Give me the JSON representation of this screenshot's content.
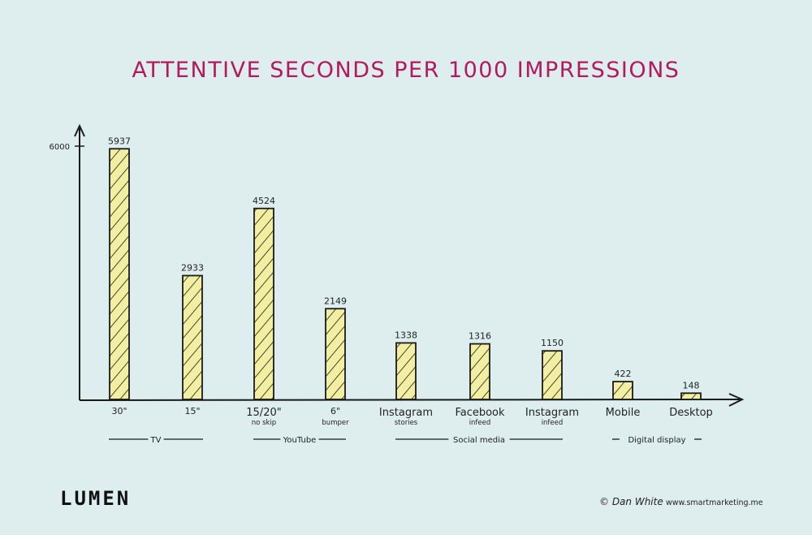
{
  "chart_data": {
    "type": "bar",
    "title": "ATTENTIVE SECONDS PER 1000 IMPRESSIONS",
    "ylim": [
      0,
      6000
    ],
    "yticks": [
      "6000"
    ],
    "grid": false,
    "categories": [
      {
        "label": "30\"",
        "sub": ""
      },
      {
        "label": "15\"",
        "sub": ""
      },
      {
        "label": "15/20\"",
        "sub": "no skip"
      },
      {
        "label": "6\"",
        "sub": "bumper"
      },
      {
        "label": "Instagram",
        "sub": "stories"
      },
      {
        "label": "Facebook",
        "sub": "infeed"
      },
      {
        "label": "Instagram",
        "sub": "infeed"
      },
      {
        "label": "Mobile",
        "sub": ""
      },
      {
        "label": "Desktop",
        "sub": ""
      }
    ],
    "values": [
      5937,
      2933,
      4524,
      2149,
      1338,
      1316,
      1150,
      422,
      148
    ],
    "groups": [
      {
        "label": "TV",
        "from": 0,
        "to": 1
      },
      {
        "label": "YouTube",
        "from": 2,
        "to": 3
      },
      {
        "label": "Social media",
        "from": 4,
        "to": 6
      },
      {
        "label": "Digital display",
        "from": 7,
        "to": 8
      }
    ],
    "colors": {
      "title": "#b3195e",
      "bar_fill": "#f3efa2",
      "stroke": "#1a1a1a",
      "background": "#deeeee"
    }
  },
  "footer": {
    "logo": "LUMEN",
    "credit": "© Dan White",
    "website": "www.smartmarketing.me"
  }
}
